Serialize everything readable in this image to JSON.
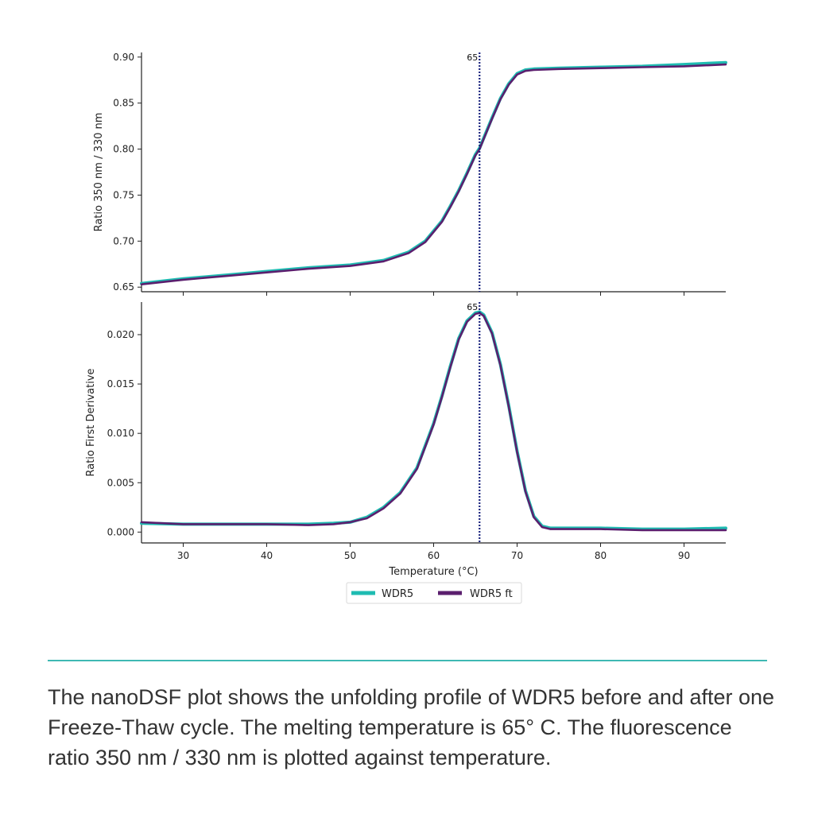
{
  "caption": "The nanoDSF plot shows the unfolding profile of WDR5 before and after one Freeze-Thaw cycle. The melting temperature is 65° C. The fluorescence ratio 350 nm / 330 nm is plotted against temperature.",
  "colors": {
    "WDR5": "#1fbcb2",
    "WDR5 ft": "#5b1f6e",
    "marker_line": "#1a237e",
    "divider": "#3fb9b3"
  },
  "chart_data": [
    {
      "type": "line",
      "xlabel": "",
      "ylabel": "Ratio 350 nm / 330 nm",
      "xlim": [
        25,
        95
      ],
      "ylim": [
        0.645,
        0.905
      ],
      "yticks": [
        0.65,
        0.7,
        0.75,
        0.8,
        0.85,
        0.9
      ],
      "ytick_labels": [
        "0.65",
        "0.70",
        "0.75",
        "0.80",
        "0.85",
        "0.90"
      ],
      "xticks": [
        30,
        40,
        50,
        60,
        70,
        80,
        90
      ],
      "vline": {
        "x": 65.5,
        "label": "65"
      },
      "x": [
        25,
        30,
        35,
        40,
        45,
        50,
        54,
        57,
        59,
        61,
        62,
        63,
        64,
        65,
        65.5,
        66,
        67,
        68,
        69,
        70,
        71,
        72,
        75,
        80,
        85,
        90,
        95
      ],
      "series": [
        {
          "name": "WDR5",
          "values": [
            0.654,
            0.659,
            0.663,
            0.667,
            0.671,
            0.674,
            0.679,
            0.688,
            0.7,
            0.722,
            0.738,
            0.755,
            0.774,
            0.794,
            0.801,
            0.812,
            0.834,
            0.855,
            0.871,
            0.882,
            0.886,
            0.887,
            0.888,
            0.889,
            0.89,
            0.892,
            0.894
          ]
        },
        {
          "name": "WDR5 ft",
          "values": [
            0.653,
            0.658,
            0.662,
            0.666,
            0.67,
            0.673,
            0.678,
            0.687,
            0.699,
            0.721,
            0.737,
            0.754,
            0.773,
            0.793,
            0.8,
            0.811,
            0.833,
            0.854,
            0.87,
            0.881,
            0.885,
            0.886,
            0.887,
            0.888,
            0.889,
            0.89,
            0.892
          ]
        }
      ]
    },
    {
      "type": "line",
      "xlabel": "Temperature (°C)",
      "ylabel": "Ratio First Derivative",
      "xlim": [
        25,
        95
      ],
      "ylim": [
        -0.0011,
        0.0233
      ],
      "yticks": [
        0.0,
        0.005,
        0.01,
        0.015,
        0.02
      ],
      "ytick_labels": [
        "0.000",
        "0.005",
        "0.010",
        "0.015",
        "0.020"
      ],
      "xticks": [
        30,
        40,
        50,
        60,
        70,
        80,
        90
      ],
      "xtick_labels": [
        "30",
        "40",
        "50",
        "60",
        "70",
        "80",
        "90"
      ],
      "vline": {
        "x": 65.5,
        "label": "65"
      },
      "x": [
        25,
        30,
        35,
        40,
        45,
        48,
        50,
        52,
        54,
        56,
        58,
        60,
        61,
        62,
        63,
        64,
        65,
        65.5,
        66,
        67,
        68,
        69,
        70,
        71,
        72,
        73,
        74,
        75,
        80,
        85,
        90,
        95
      ],
      "series": [
        {
          "name": "WDR5",
          "values": [
            0.0009,
            0.0008,
            0.0008,
            0.0008,
            0.0008,
            0.0009,
            0.001,
            0.0015,
            0.0025,
            0.004,
            0.0065,
            0.011,
            0.0138,
            0.0168,
            0.0196,
            0.0214,
            0.0222,
            0.0223,
            0.022,
            0.0202,
            0.017,
            0.0128,
            0.0082,
            0.0042,
            0.0016,
            0.0006,
            0.0004,
            0.0004,
            0.0004,
            0.0003,
            0.0003,
            0.0004
          ]
        },
        {
          "name": "WDR5 ft",
          "values": [
            0.001,
            0.0008,
            0.0008,
            0.0008,
            0.0007,
            0.0008,
            0.001,
            0.0014,
            0.0024,
            0.0039,
            0.0064,
            0.0109,
            0.0137,
            0.0167,
            0.0195,
            0.0213,
            0.0221,
            0.0222,
            0.0219,
            0.0201,
            0.0169,
            0.0127,
            0.0081,
            0.0041,
            0.0015,
            0.0005,
            0.0003,
            0.0003,
            0.0003,
            0.0002,
            0.0002,
            0.0002
          ]
        }
      ]
    }
  ],
  "legend": {
    "placement": "bottom-center",
    "items": [
      "WDR5",
      "WDR5 ft"
    ]
  }
}
